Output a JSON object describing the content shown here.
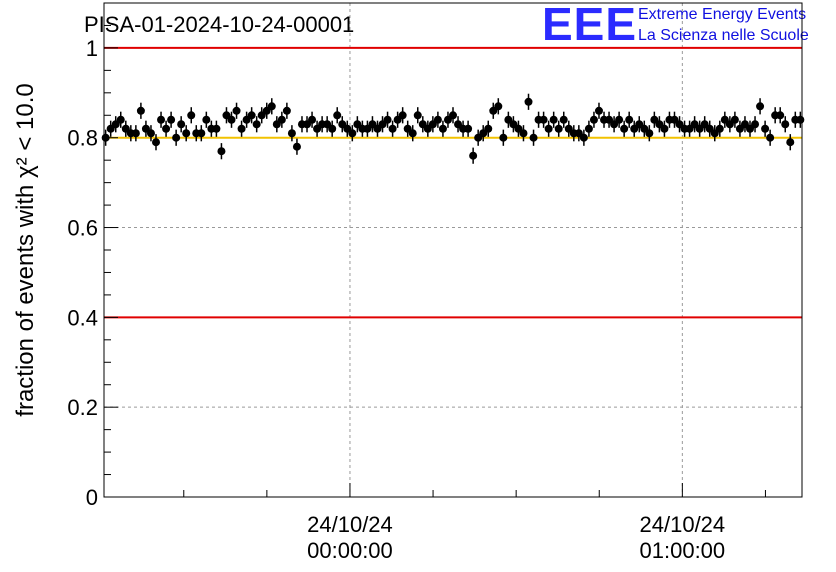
{
  "logo": {
    "mark": "EEE",
    "line1": "Extreme Energy Events",
    "line2": "La Scienza nelle Scuole",
    "color": "#1a1aff"
  },
  "chart_data": {
    "type": "scatter",
    "title": "PISA-01-2024-10-24-00001",
    "ylabel": "fraction of events with χ² < 10.0",
    "ylim": [
      0,
      1.1
    ],
    "xlim": [
      -0.74,
      1.36
    ],
    "x_unit": "hours since 24/10/24 00:00:00",
    "x_ticks": [
      {
        "x": 0,
        "label_date": "24/10/24",
        "label_time": "00:00:00"
      },
      {
        "x": 1,
        "label_date": "24/10/24",
        "label_time": "01:00:00"
      }
    ],
    "y_ticks": [
      {
        "value": 0,
        "label": "0"
      },
      {
        "value": 0.2,
        "label": "0.2"
      },
      {
        "value": 0.4,
        "label": "0.4"
      },
      {
        "value": 0.6,
        "label": "0.6"
      },
      {
        "value": 0.8,
        "label": "0.8"
      },
      {
        "value": 1,
        "label": "1"
      }
    ],
    "grid": true,
    "reference_lines": [
      {
        "y": 1.0,
        "color": "#e00000"
      },
      {
        "y": 0.8,
        "color": "#f2c200"
      },
      {
        "y": 0.4,
        "color": "#e00000"
      }
    ],
    "series": [
      {
        "marker_color": "#000000",
        "error": 0.018,
        "values": [
          0.8,
          0.82,
          0.83,
          0.84,
          0.82,
          0.81,
          0.81,
          0.86,
          0.82,
          0.81,
          0.79,
          0.84,
          0.82,
          0.84,
          0.8,
          0.83,
          0.81,
          0.85,
          0.81,
          0.81,
          0.84,
          0.82,
          0.82,
          0.77,
          0.85,
          0.84,
          0.86,
          0.82,
          0.84,
          0.85,
          0.83,
          0.85,
          0.86,
          0.87,
          0.83,
          0.84,
          0.86,
          0.81,
          0.78,
          0.83,
          0.83,
          0.84,
          0.82,
          0.83,
          0.83,
          0.82,
          0.85,
          0.83,
          0.82,
          0.81,
          0.83,
          0.82,
          0.82,
          0.83,
          0.82,
          0.83,
          0.84,
          0.82,
          0.84,
          0.85,
          0.82,
          0.81,
          0.85,
          0.83,
          0.82,
          0.83,
          0.84,
          0.82,
          0.84,
          0.85,
          0.83,
          0.82,
          0.82,
          0.76,
          0.8,
          0.81,
          0.82,
          0.86,
          0.87,
          0.8,
          0.84,
          0.83,
          0.82,
          0.81,
          0.88,
          0.8,
          0.84,
          0.84,
          0.82,
          0.84,
          0.82,
          0.84,
          0.82,
          0.81,
          0.81,
          0.8,
          0.82,
          0.84,
          0.86,
          0.84,
          0.84,
          0.83,
          0.84,
          0.82,
          0.84,
          0.82,
          0.83,
          0.82,
          0.81,
          0.84,
          0.83,
          0.82,
          0.84,
          0.84,
          0.83,
          0.82,
          0.82,
          0.83,
          0.82,
          0.83,
          0.82,
          0.81,
          0.82,
          0.84,
          0.83,
          0.84,
          0.82,
          0.83,
          0.82,
          0.83,
          0.87,
          0.82,
          0.8,
          0.85,
          0.85,
          0.83,
          0.79,
          0.84,
          0.84
        ]
      }
    ]
  }
}
